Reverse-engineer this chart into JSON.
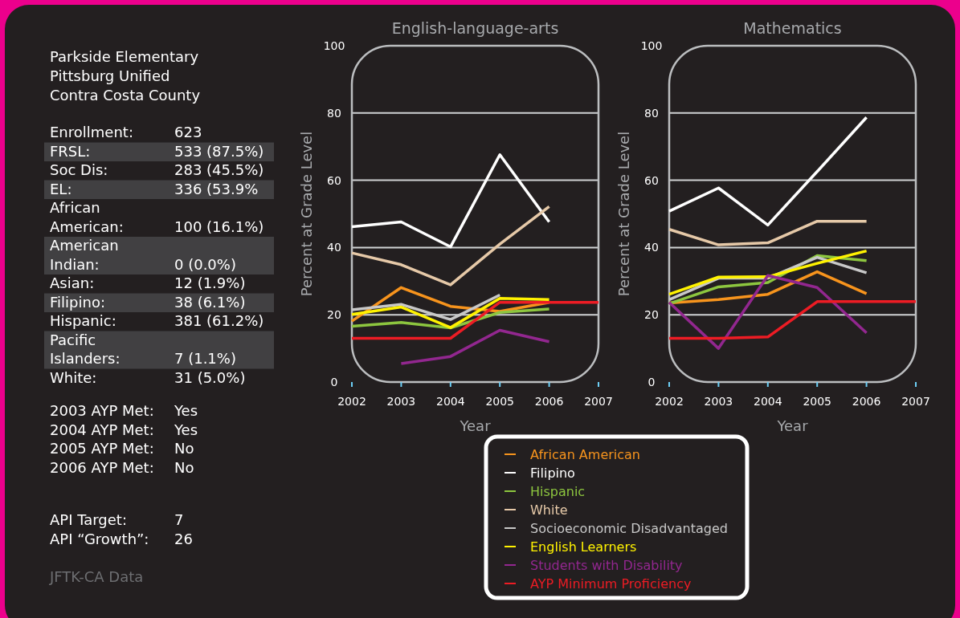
{
  "chart_data": [
    {
      "type": "other",
      "title": "Parkside Elementary",
      "subtitle": "Pittsburg Unified\nContra Costa County",
      "annotations": [
        "Enrollment:\t623",
        "FRSL:\t533 (87.5%)",
        "Soc Dis:\t283 (45.5%)",
        "EL:\t336 (53.9%",
        "African\nAmerican:\t100 (16.1%)",
        "American\nIndian:\t0 (0.0%)",
        "Asian:\t12 (1.9%)",
        "Filipino:\t38 (6.1%)",
        "Hispanic:\t381 (61.2%)",
        "Pacific\nIslanders:\t7 (1.1%)",
        "White:\t31 (5.0%)",
        "2003 AYP Met:\tYes",
        "2004 AYP Met:\tYes",
        "2005 AYP Met:\tNo",
        "2006 AYP Met:\tNo",
        "API Target:\t7",
        "API “Growth”:\t26",
        "JFTK-CA Data"
      ]
    },
    {
      "type": "line",
      "title": "English-language-arts",
      "xlabel": "Year",
      "ylabel": "Percent at Grade Level",
      "x": [
        2002,
        2003,
        2004,
        2005,
        2006,
        2007
      ],
      "xlim": [
        2002,
        2007
      ],
      "xticks": [
        2002,
        2003,
        2004,
        2005,
        2006,
        2007
      ],
      "ylim": [
        0,
        100
      ],
      "yticks": [
        0,
        20,
        40,
        60,
        80,
        100
      ],
      "grid": "y",
      "series": [
        {
          "color": "#f7941d",
          "values": [
            18.1,
            28.1,
            22.5,
            21,
            23.7,
            null
          ]
        },
        {
          "color": "#ffffff",
          "values": [
            46.2,
            47.6,
            40.2,
            67.6,
            47.6,
            null
          ]
        },
        {
          "color": "#8dc63f",
          "values": [
            16.6,
            17.7,
            16.1,
            20.7,
            21.7,
            null
          ]
        },
        {
          "color": "#e6c9a8",
          "values": [
            38.4,
            34.9,
            28.9,
            41,
            52.2,
            null
          ]
        },
        {
          "color": "#c8c8c8",
          "values": [
            21.5,
            23.1,
            18.6,
            25.9,
            null,
            null
          ]
        },
        {
          "color": "#fff200",
          "values": [
            20.1,
            22.3,
            16.2,
            24.9,
            24.5,
            null
          ]
        },
        {
          "color": "#92278f",
          "values": [
            null,
            5.5,
            7.6,
            15.4,
            12,
            null
          ]
        },
        {
          "color": "#ed1c24",
          "values": [
            13,
            13,
            13,
            23.7,
            23.7,
            23.7
          ]
        }
      ]
    },
    {
      "type": "line",
      "title": "Mathematics",
      "xlabel": "Year",
      "ylabel": "Percent at Grade Level",
      "x": [
        2002,
        2003,
        2004,
        2005,
        2006,
        2007
      ],
      "xlim": [
        2002,
        2007
      ],
      "xticks": [
        2002,
        2003,
        2004,
        2005,
        2006,
        2007
      ],
      "ylim": [
        0,
        100
      ],
      "yticks": [
        0,
        20,
        40,
        60,
        80,
        100
      ],
      "grid": "y",
      "legend": "bottom",
      "series": [
        {
          "name": "African American",
          "color": "#f7941d",
          "values": [
            23.5,
            24.5,
            26.1,
            32.8,
            26.3,
            null
          ]
        },
        {
          "name": "Filipino",
          "color": "#ffffff",
          "values": [
            50.8,
            57.7,
            46.7,
            62.6,
            78.7,
            null
          ]
        },
        {
          "name": "Hispanic",
          "color": "#8dc63f",
          "values": [
            23.3,
            28.3,
            29.6,
            37.6,
            36.1,
            null
          ]
        },
        {
          "name": "White",
          "color": "#e6c9a8",
          "values": [
            45.4,
            40.8,
            41.4,
            47.8,
            47.8,
            null
          ]
        },
        {
          "name": "Socioeconomic Disadvantaged",
          "color": "#c8c8c8",
          "values": [
            24.5,
            30.9,
            30.9,
            37.1,
            32.5,
            null
          ]
        },
        {
          "name": "English Learners",
          "color": "#fff200",
          "values": [
            26.1,
            31.2,
            31.3,
            35.3,
            39,
            null
          ]
        },
        {
          "name": "Students with Disability",
          "color": "#92278f",
          "values": [
            23.7,
            10,
            31.7,
            28.1,
            14.6,
            null
          ]
        },
        {
          "name": "AYP Minimum Proficiency",
          "color": "#ed1c24",
          "values": [
            13,
            13,
            13.4,
            23.9,
            23.9,
            23.9
          ]
        }
      ]
    }
  ]
}
